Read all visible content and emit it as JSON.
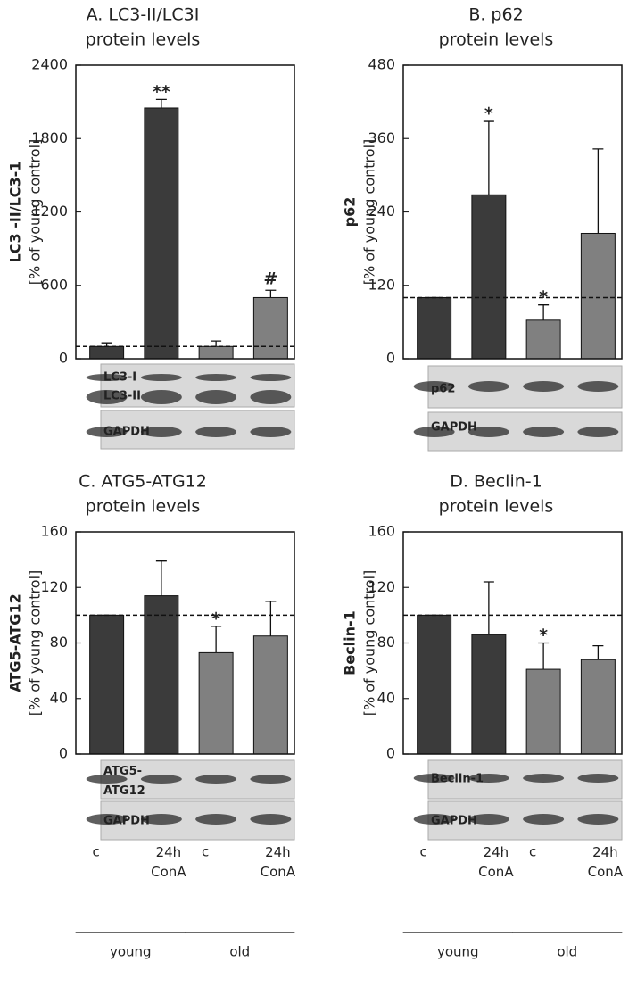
{
  "chart_data": [
    {
      "type": "bar",
      "title": [
        "A. LC3-II/LC3I",
        "protein levels"
      ],
      "ylabel": [
        "LC3 -II/LC3-1",
        "[% of young control]"
      ],
      "values": [
        100,
        2050,
        100,
        500
      ],
      "errors": [
        30,
        70,
        45,
        60
      ],
      "colors": [
        "#3b3b3b",
        "#3b3b3b",
        "#808080",
        "#808080"
      ],
      "ylim": [
        0,
        2400
      ],
      "yticks": [
        0,
        600,
        1200,
        1800,
        2400
      ],
      "reference_line": 100,
      "annotations": [
        {
          "index": 1,
          "text": "**"
        },
        {
          "index": 3,
          "text": "#"
        }
      ],
      "blot_labels": [
        "LC3-I",
        "LC3-II",
        "GAPDH"
      ]
    },
    {
      "type": "bar",
      "title": [
        "B. p62",
        "protein levels"
      ],
      "ylabel": [
        "p62",
        "[% of young control]"
      ],
      "values": [
        100,
        268,
        63,
        205
      ],
      "errors": [
        0,
        120,
        25,
        138
      ],
      "colors": [
        "#3b3b3b",
        "#3b3b3b",
        "#808080",
        "#808080"
      ],
      "ylim": [
        0,
        480
      ],
      "yticks": [
        0,
        120,
        240,
        360,
        480
      ],
      "reference_line": 100,
      "annotations": [
        {
          "index": 1,
          "text": "*"
        },
        {
          "index": 2,
          "text": "*"
        }
      ],
      "blot_labels": [
        "p62",
        "GAPDH"
      ]
    },
    {
      "type": "bar",
      "title": [
        "C. ATG5-ATG12",
        "protein levels"
      ],
      "ylabel": [
        "ATG5-ATG12",
        "[% of young control]"
      ],
      "values": [
        100,
        114,
        73,
        85
      ],
      "errors": [
        0,
        25,
        19,
        25
      ],
      "colors": [
        "#3b3b3b",
        "#3b3b3b",
        "#808080",
        "#808080"
      ],
      "ylim": [
        0,
        160
      ],
      "yticks": [
        0,
        40,
        80,
        120,
        160
      ],
      "reference_line": 100,
      "annotations": [
        {
          "index": 2,
          "text": "*"
        }
      ],
      "blot_labels": [
        "ATG5-\nATG12",
        "GAPDH"
      ],
      "categories": [
        "c",
        "24h\nConA",
        "c",
        "24h\nConA"
      ],
      "groups": [
        "young",
        "old"
      ]
    },
    {
      "type": "bar",
      "title": [
        "D. Beclin-1",
        "protein levels"
      ],
      "ylabel": [
        "Beclin-1",
        "[% of young control]"
      ],
      "values": [
        100,
        86,
        61,
        68
      ],
      "errors": [
        0,
        38,
        19,
        10
      ],
      "colors": [
        "#3b3b3b",
        "#3b3b3b",
        "#808080",
        "#808080"
      ],
      "ylim": [
        0,
        160
      ],
      "yticks": [
        0,
        40,
        80,
        120,
        160
      ],
      "reference_line": 100,
      "annotations": [
        {
          "index": 2,
          "text": "*"
        }
      ],
      "blot_labels": [
        "Beclin-1",
        "GAPDH"
      ],
      "categories": [
        "c",
        "24h\nConA",
        "c",
        "24h\nConA"
      ],
      "groups": [
        "young",
        "old"
      ]
    }
  ]
}
